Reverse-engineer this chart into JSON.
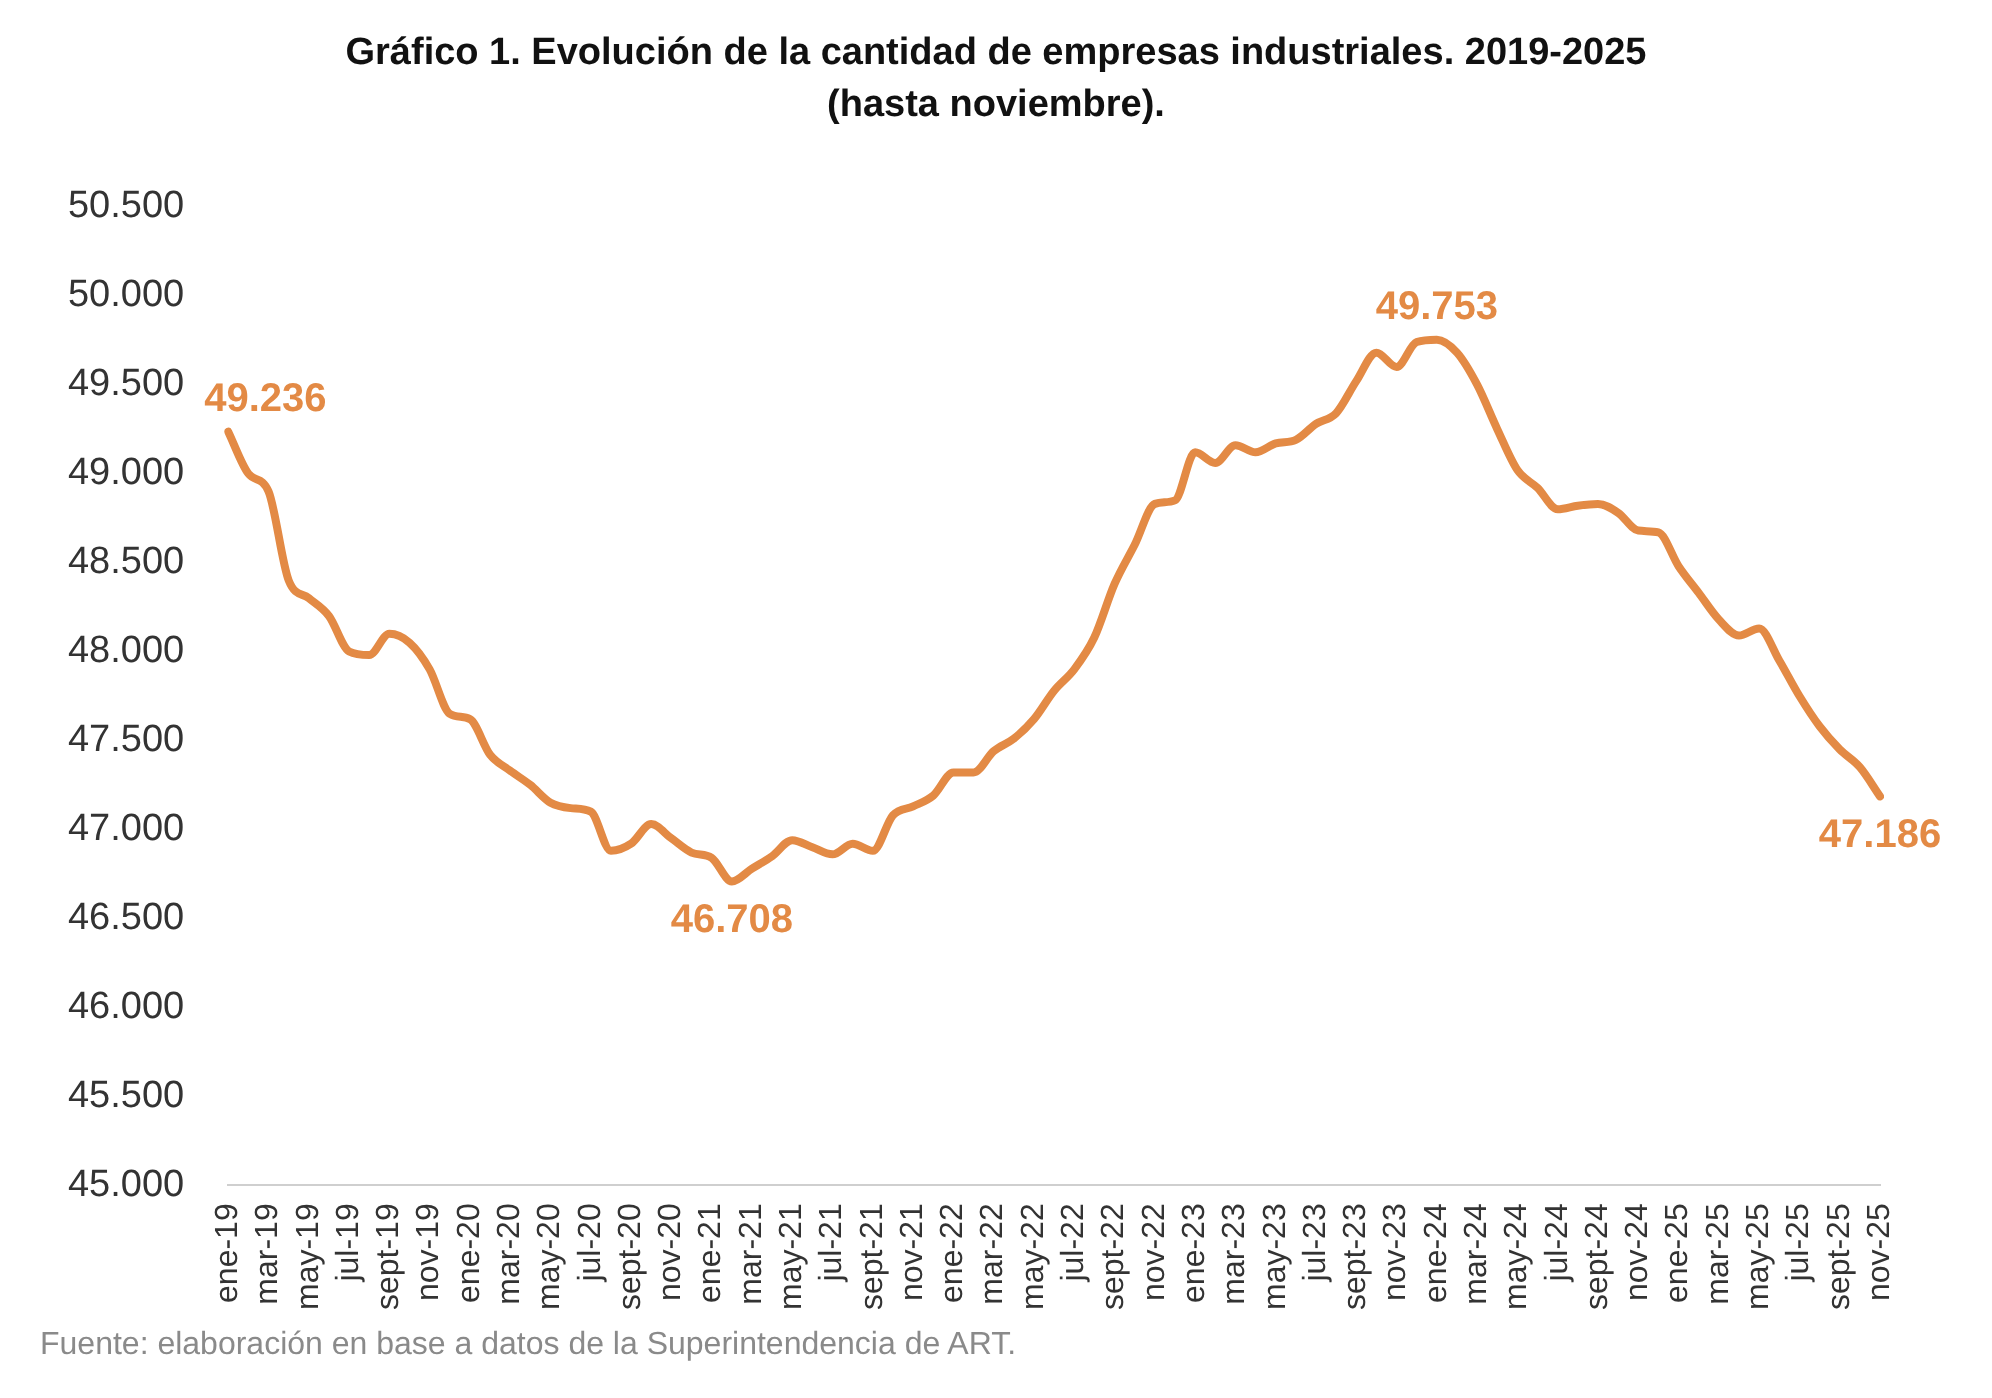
{
  "chart_data": {
    "type": "line",
    "title": "Gráfico 1. Evolución de la cantidad de empresas industriales. 2019-2025 (hasta noviembre).",
    "categories": [
      "ene-19",
      null,
      "mar-19",
      null,
      "may-19",
      null,
      "jul-19",
      null,
      "sept-19",
      null,
      "nov-19",
      null,
      "ene-20",
      null,
      "mar-20",
      null,
      "may-20",
      null,
      "jul-20",
      null,
      "sept-20",
      null,
      "nov-20",
      null,
      "ene-21",
      null,
      "mar-21",
      null,
      "may-21",
      null,
      "jul-21",
      null,
      "sept-21",
      null,
      "nov-21",
      null,
      "ene-22",
      null,
      "mar-22",
      null,
      "may-22",
      null,
      "jul-22",
      null,
      "sept-22",
      null,
      "nov-22",
      null,
      "ene-23",
      null,
      "mar-23",
      null,
      "may-23",
      null,
      "jul-23",
      null,
      "sept-23",
      null,
      "nov-23",
      null,
      "ene-24",
      null,
      "mar-24",
      null,
      "may-24",
      null,
      "jul-24",
      null,
      "sept-24",
      null,
      "nov-24",
      null,
      "ene-25",
      null,
      "mar-25",
      null,
      "may-25",
      null,
      "jul-25",
      null,
      "sept-25",
      null,
      "nov-25"
    ],
    "series": [
      {
        "color": "#e38a45",
        "values": [
          49236,
          49000,
          48900,
          48400,
          48300,
          48200,
          48000,
          47980,
          48100,
          48050,
          47900,
          47650,
          47620,
          47420,
          47330,
          47250,
          47150,
          47120,
          47100,
          46880,
          46920,
          47030,
          46950,
          46870,
          46840,
          46708,
          46780,
          46850,
          46940,
          46900,
          46860,
          46920,
          46880,
          47080,
          47130,
          47190,
          47320,
          47320,
          47440,
          47510,
          47620,
          47780,
          47900,
          48080,
          48380,
          48600,
          48830,
          48850,
          49120,
          49060,
          49160,
          49120,
          49170,
          49190,
          49280,
          49340,
          49520,
          49680,
          49600,
          49740,
          49753,
          49680,
          49500,
          49250,
          49020,
          48920,
          48800,
          48820,
          48830,
          48780,
          48680,
          48670,
          48480,
          48330,
          48180,
          48090,
          48130,
          47950,
          47750,
          47580,
          47450,
          47350,
          47186
        ],
        "value_labels": [
          "49.236",
          null,
          null,
          null,
          null,
          null,
          null,
          null,
          null,
          null,
          null,
          null,
          null,
          null,
          null,
          null,
          null,
          null,
          null,
          null,
          null,
          null,
          null,
          null,
          null,
          "46.708",
          null,
          null,
          null,
          null,
          null,
          null,
          null,
          null,
          null,
          null,
          null,
          null,
          null,
          null,
          null,
          null,
          null,
          null,
          null,
          null,
          null,
          null,
          null,
          null,
          null,
          null,
          null,
          null,
          null,
          null,
          null,
          null,
          null,
          null,
          "49.753",
          null,
          null,
          null,
          null,
          null,
          null,
          null,
          null,
          null,
          null,
          null,
          null,
          null,
          null,
          null,
          null,
          null,
          null,
          null,
          null,
          null,
          "47.186"
        ]
      }
    ],
    "ylim": [
      45000,
      50500
    ],
    "yticks": [
      {
        "value": 45000,
        "label": "45.000"
      },
      {
        "value": 45500,
        "label": "45.500"
      },
      {
        "value": 46000,
        "label": "46.000"
      },
      {
        "value": 46500,
        "label": "46.500"
      },
      {
        "value": 47000,
        "label": "47.000"
      },
      {
        "value": 47500,
        "label": "47.500"
      },
      {
        "value": 48000,
        "label": "48.000"
      },
      {
        "value": 48500,
        "label": "48.500"
      },
      {
        "value": 49000,
        "label": "49.000"
      },
      {
        "value": 49500,
        "label": "49.500"
      },
      {
        "value": 50000,
        "label": "50.000"
      },
      {
        "value": 50500,
        "label": "50.500"
      }
    ],
    "grid": false,
    "legend": false,
    "marker": "none",
    "line_style": "solid",
    "annotations": [
      "Fuente: elaboración en base a datos de la Superintendencia de ART."
    ]
  }
}
